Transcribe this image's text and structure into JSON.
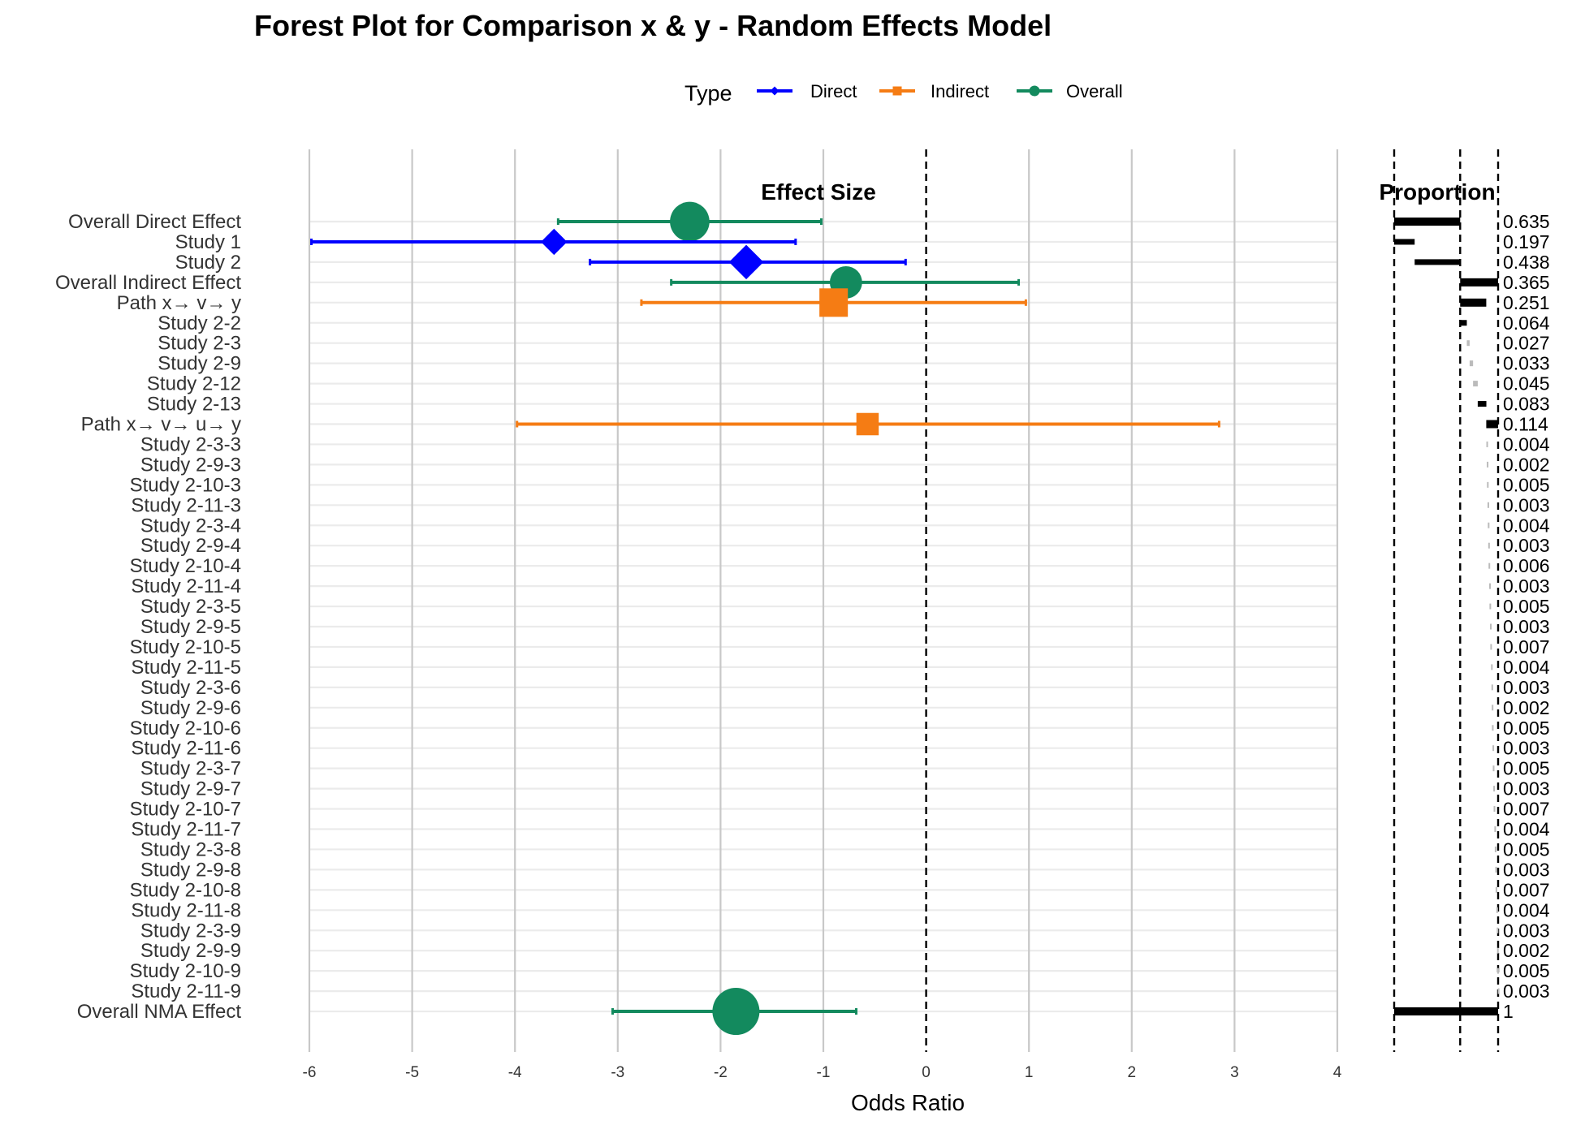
{
  "chart_data": {
    "type": "forest",
    "title": "Forest Plot for Comparison x & y - Random Effects Model",
    "panel_titles": {
      "effect": "Effect Size",
      "proportion": "Proportion"
    },
    "xlabel": "Odds Ratio",
    "xlim": [
      -6,
      4
    ],
    "xticks": [
      "-6",
      "-5",
      "-4",
      "-3",
      "-2",
      "-1",
      "0",
      "1",
      "2",
      "3",
      "4"
    ],
    "reference_line": 0,
    "proportion_reference_lines": [
      0,
      0.635,
      1
    ],
    "legend": {
      "title": "Type",
      "position": "top",
      "items": [
        {
          "label": "Direct",
          "shape": "diamond",
          "color": "#0000ff"
        },
        {
          "label": "Indirect",
          "shape": "square",
          "color": "#f57c14"
        },
        {
          "label": "Overall",
          "shape": "circle",
          "color": "#138a5e"
        }
      ]
    },
    "rows": [
      {
        "label": "Overall Direct Effect",
        "type": "Overall",
        "est": -2.3,
        "lo": -3.58,
        "hi": -1.02,
        "proportion": "0.635",
        "p_start": 0,
        "p_end": 0.635
      },
      {
        "label": "Study 1",
        "type": "Direct",
        "est": -3.62,
        "lo": -5.98,
        "hi": -1.27,
        "proportion": "0.197",
        "p_start": 0,
        "p_end": 0.197
      },
      {
        "label": "Study 2",
        "type": "Direct",
        "est": -1.75,
        "lo": -3.27,
        "hi": -0.2,
        "proportion": "0.438",
        "p_start": 0.197,
        "p_end": 0.635
      },
      {
        "label": "Overall Indirect Effect",
        "type": "Overall",
        "est": -0.78,
        "lo": -2.48,
        "hi": 0.9,
        "proportion": "0.365",
        "p_start": 0.635,
        "p_end": 1.0
      },
      {
        "label": "Path x→ v→ y",
        "type": "Indirect",
        "est": -0.9,
        "lo": -2.77,
        "hi": 0.97,
        "proportion": "0.251",
        "p_start": 0.635,
        "p_end": 0.886
      },
      {
        "label": "Study 2-2",
        "type": "Indirect",
        "est": null,
        "lo": null,
        "hi": null,
        "proportion": "0.064",
        "p_start": 0.635,
        "p_end": 0.699
      },
      {
        "label": "Study 2-3",
        "type": "Indirect",
        "est": null,
        "lo": null,
        "hi": null,
        "proportion": "0.027",
        "p_start": 0.699,
        "p_end": 0.726
      },
      {
        "label": "Study 2-9",
        "type": "Indirect",
        "est": null,
        "lo": null,
        "hi": null,
        "proportion": "0.033",
        "p_start": 0.726,
        "p_end": 0.759
      },
      {
        "label": "Study 2-12",
        "type": "Indirect",
        "est": null,
        "lo": null,
        "hi": null,
        "proportion": "0.045",
        "p_start": 0.759,
        "p_end": 0.804
      },
      {
        "label": "Study 2-13",
        "type": "Indirect",
        "est": null,
        "lo": null,
        "hi": null,
        "proportion": "0.083",
        "p_start": 0.804,
        "p_end": 0.887
      },
      {
        "label": "Path x→ v→ u→ y",
        "type": "Indirect",
        "est": -0.57,
        "lo": -3.98,
        "hi": 2.85,
        "proportion": "0.114",
        "p_start": 0.886,
        "p_end": 1.0
      },
      {
        "label": "Study 2-3-3",
        "type": "Indirect",
        "est": null,
        "lo": null,
        "hi": null,
        "proportion": "0.004",
        "p_start": 0.887,
        "p_end": 0.891
      },
      {
        "label": "Study 2-9-3",
        "type": "Indirect",
        "est": null,
        "lo": null,
        "hi": null,
        "proportion": "0.002",
        "p_start": 0.891,
        "p_end": 0.893
      },
      {
        "label": "Study 2-10-3",
        "type": "Indirect",
        "est": null,
        "lo": null,
        "hi": null,
        "proportion": "0.005",
        "p_start": 0.893,
        "p_end": 0.898
      },
      {
        "label": "Study 2-11-3",
        "type": "Indirect",
        "est": null,
        "lo": null,
        "hi": null,
        "proportion": "0.003",
        "p_start": 0.898,
        "p_end": 0.901
      },
      {
        "label": "Study 2-3-4",
        "type": "Indirect",
        "est": null,
        "lo": null,
        "hi": null,
        "proportion": "0.004",
        "p_start": 0.901,
        "p_end": 0.905
      },
      {
        "label": "Study 2-9-4",
        "type": "Indirect",
        "est": null,
        "lo": null,
        "hi": null,
        "proportion": "0.003",
        "p_start": 0.905,
        "p_end": 0.908
      },
      {
        "label": "Study 2-10-4",
        "type": "Indirect",
        "est": null,
        "lo": null,
        "hi": null,
        "proportion": "0.006",
        "p_start": 0.908,
        "p_end": 0.914
      },
      {
        "label": "Study 2-11-4",
        "type": "Indirect",
        "est": null,
        "lo": null,
        "hi": null,
        "proportion": "0.003",
        "p_start": 0.914,
        "p_end": 0.917
      },
      {
        "label": "Study 2-3-5",
        "type": "Indirect",
        "est": null,
        "lo": null,
        "hi": null,
        "proportion": "0.005",
        "p_start": 0.917,
        "p_end": 0.922
      },
      {
        "label": "Study 2-9-5",
        "type": "Indirect",
        "est": null,
        "lo": null,
        "hi": null,
        "proportion": "0.003",
        "p_start": 0.922,
        "p_end": 0.925
      },
      {
        "label": "Study 2-10-5",
        "type": "Indirect",
        "est": null,
        "lo": null,
        "hi": null,
        "proportion": "0.007",
        "p_start": 0.925,
        "p_end": 0.932
      },
      {
        "label": "Study 2-11-5",
        "type": "Indirect",
        "est": null,
        "lo": null,
        "hi": null,
        "proportion": "0.004",
        "p_start": 0.932,
        "p_end": 0.936
      },
      {
        "label": "Study 2-3-6",
        "type": "Indirect",
        "est": null,
        "lo": null,
        "hi": null,
        "proportion": "0.003",
        "p_start": 0.936,
        "p_end": 0.939
      },
      {
        "label": "Study 2-9-6",
        "type": "Indirect",
        "est": null,
        "lo": null,
        "hi": null,
        "proportion": "0.002",
        "p_start": 0.939,
        "p_end": 0.941
      },
      {
        "label": "Study 2-10-6",
        "type": "Indirect",
        "est": null,
        "lo": null,
        "hi": null,
        "proportion": "0.005",
        "p_start": 0.941,
        "p_end": 0.946
      },
      {
        "label": "Study 2-11-6",
        "type": "Indirect",
        "est": null,
        "lo": null,
        "hi": null,
        "proportion": "0.003",
        "p_start": 0.946,
        "p_end": 0.949
      },
      {
        "label": "Study 2-3-7",
        "type": "Indirect",
        "est": null,
        "lo": null,
        "hi": null,
        "proportion": "0.005",
        "p_start": 0.949,
        "p_end": 0.954
      },
      {
        "label": "Study 2-9-7",
        "type": "Indirect",
        "est": null,
        "lo": null,
        "hi": null,
        "proportion": "0.003",
        "p_start": 0.954,
        "p_end": 0.957
      },
      {
        "label": "Study 2-10-7",
        "type": "Indirect",
        "est": null,
        "lo": null,
        "hi": null,
        "proportion": "0.007",
        "p_start": 0.957,
        "p_end": 0.964
      },
      {
        "label": "Study 2-11-7",
        "type": "Indirect",
        "est": null,
        "lo": null,
        "hi": null,
        "proportion": "0.004",
        "p_start": 0.964,
        "p_end": 0.968
      },
      {
        "label": "Study 2-3-8",
        "type": "Indirect",
        "est": null,
        "lo": null,
        "hi": null,
        "proportion": "0.005",
        "p_start": 0.968,
        "p_end": 0.973
      },
      {
        "label": "Study 2-9-8",
        "type": "Indirect",
        "est": null,
        "lo": null,
        "hi": null,
        "proportion": "0.003",
        "p_start": 0.973,
        "p_end": 0.976
      },
      {
        "label": "Study 2-10-8",
        "type": "Indirect",
        "est": null,
        "lo": null,
        "hi": null,
        "proportion": "0.007",
        "p_start": 0.976,
        "p_end": 0.983
      },
      {
        "label": "Study 2-11-8",
        "type": "Indirect",
        "est": null,
        "lo": null,
        "hi": null,
        "proportion": "0.004",
        "p_start": 0.983,
        "p_end": 0.987
      },
      {
        "label": "Study 2-3-9",
        "type": "Indirect",
        "est": null,
        "lo": null,
        "hi": null,
        "proportion": "0.003",
        "p_start": 0.987,
        "p_end": 0.99
      },
      {
        "label": "Study 2-9-9",
        "type": "Indirect",
        "est": null,
        "lo": null,
        "hi": null,
        "proportion": "0.002",
        "p_start": 0.99,
        "p_end": 0.992
      },
      {
        "label": "Study 2-10-9",
        "type": "Indirect",
        "est": null,
        "lo": null,
        "hi": null,
        "proportion": "0.005",
        "p_start": 0.992,
        "p_end": 0.997
      },
      {
        "label": "Study 2-11-9",
        "type": "Indirect",
        "est": null,
        "lo": null,
        "hi": null,
        "proportion": "0.003",
        "p_start": 0.997,
        "p_end": 1.0
      },
      {
        "label": "Overall NMA Effect",
        "type": "Overall",
        "est": -1.85,
        "lo": -3.05,
        "hi": -0.68,
        "proportion": "1",
        "p_start": 0,
        "p_end": 1.0
      }
    ]
  }
}
